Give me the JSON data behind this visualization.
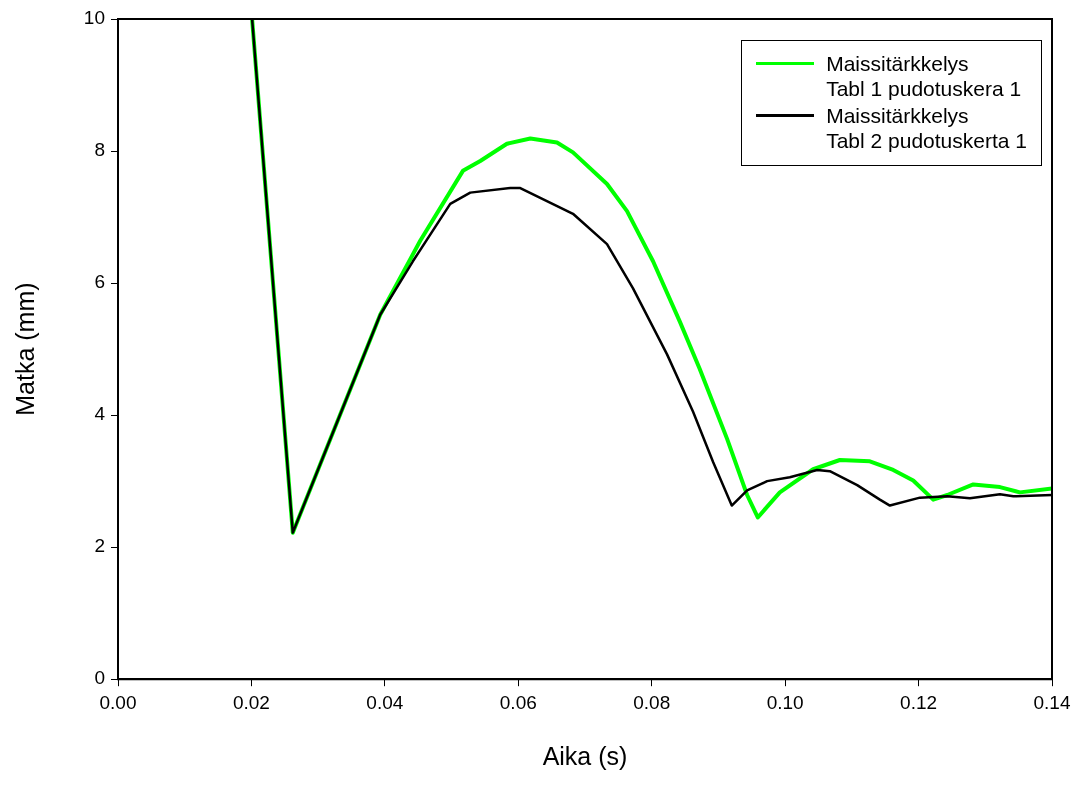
{
  "chart_data": {
    "type": "line",
    "xlabel": "Aika (s)",
    "ylabel": "Matka (mm)",
    "xlim": [
      0,
      0.14
    ],
    "xticks": [
      {
        "value": 0,
        "label": "0.00"
      },
      {
        "value": 0.02,
        "label": "0.02"
      },
      {
        "value": 0.04,
        "label": "0.04"
      },
      {
        "value": 0.06,
        "label": "0.06"
      },
      {
        "value": 0.08,
        "label": "0.08"
      },
      {
        "value": 0.1,
        "label": "0.10"
      },
      {
        "value": 0.12,
        "label": "0.12"
      },
      {
        "value": 0.14,
        "label": "0.14"
      }
    ],
    "ylim": [
      0,
      10
    ],
    "yticks": [
      0,
      2,
      4,
      6,
      8,
      10
    ],
    "grid": false,
    "legend": "top right",
    "marker": "none",
    "line_style": "solid",
    "series": [
      {
        "name": "Maissitärkkelys\nTabl 1 pudotuskera 1",
        "color": "#00ff00",
        "x": [
          0.0201,
          0.0262,
          0.0393,
          0.0453,
          0.0517,
          0.0543,
          0.0583,
          0.0618,
          0.0658,
          0.0682,
          0.0733,
          0.0763,
          0.0802,
          0.0842,
          0.0872,
          0.0913,
          0.0943,
          0.0959,
          0.0992,
          0.1042,
          0.1082,
          0.1127,
          0.1162,
          0.1192,
          0.1222,
          0.1243,
          0.1282,
          0.1322,
          0.1352,
          0.14
        ],
        "values": [
          10,
          2.22,
          5.52,
          6.64,
          7.7,
          7.85,
          8.11,
          8.19,
          8.13,
          7.98,
          7.5,
          7.09,
          6.33,
          5.42,
          4.7,
          3.64,
          2.79,
          2.45,
          2.83,
          3.18,
          3.32,
          3.3,
          3.17,
          3.01,
          2.72,
          2.79,
          2.95,
          2.91,
          2.83,
          2.89
        ]
      },
      {
        "name": "Maissitärkkelys\nTabl 2 pudotuskerta 1",
        "color": "#000000",
        "x": [
          0.0201,
          0.0262,
          0.0393,
          0.0442,
          0.0498,
          0.0528,
          0.0588,
          0.0603,
          0.0682,
          0.0733,
          0.0772,
          0.0823,
          0.0862,
          0.0892,
          0.092,
          0.0943,
          0.0973,
          0.1007,
          0.1048,
          0.1067,
          0.1108,
          0.1142,
          0.1157,
          0.1202,
          0.1243,
          0.1277,
          0.1322,
          0.1342,
          0.14
        ],
        "values": [
          10,
          2.22,
          5.52,
          6.33,
          7.2,
          7.37,
          7.44,
          7.44,
          7.05,
          6.59,
          5.92,
          4.92,
          4.05,
          3.29,
          2.63,
          2.86,
          3,
          3.06,
          3.17,
          3.15,
          2.94,
          2.72,
          2.63,
          2.75,
          2.77,
          2.74,
          2.8,
          2.77,
          2.79
        ]
      }
    ]
  }
}
